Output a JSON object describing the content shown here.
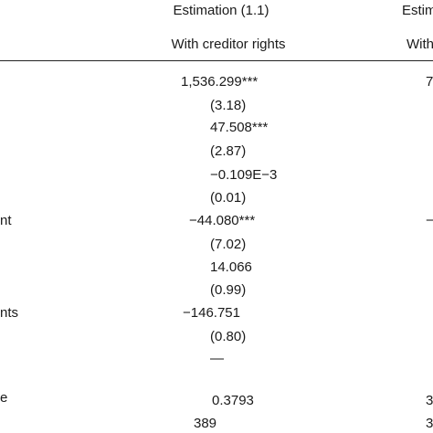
{
  "header": {
    "col1_title": "Estimation (1.1)",
    "col1_subtitle": "With creditor rights",
    "col2_title_partial": "Estim",
    "col2_subtitle_partial": "With"
  },
  "rows": [
    {
      "label": "",
      "col1": "1,536.299***",
      "col2": "7"
    },
    {
      "label": "",
      "col1": "(3.18)",
      "col2": ""
    },
    {
      "label": "",
      "col1": "47.508***",
      "col2": ""
    },
    {
      "label": "",
      "col1": "(2.87)",
      "col2": ""
    },
    {
      "label": "",
      "col1": "−0.109E−3",
      "col2": ""
    },
    {
      "label": "",
      "col1": "(0.01)",
      "col2": ""
    },
    {
      "label": "nt",
      "col1": "−44.080***",
      "col2": "−"
    },
    {
      "label": "",
      "col1": "(7.02)",
      "col2": ""
    },
    {
      "label": "",
      "col1": "14.066",
      "col2": ""
    },
    {
      "label": "",
      "col1": "(0.99)",
      "col2": ""
    },
    {
      "label": "nts",
      "col1": "−146.751",
      "col2": ""
    },
    {
      "label": "",
      "col1": "(0.80)",
      "col2": ""
    },
    {
      "label": "",
      "col1": "—",
      "col2": ""
    },
    {
      "label": "e",
      "col1": "0.3793",
      "col2": "3"
    },
    {
      "label": "",
      "col1": "389",
      "col2": "3"
    }
  ]
}
